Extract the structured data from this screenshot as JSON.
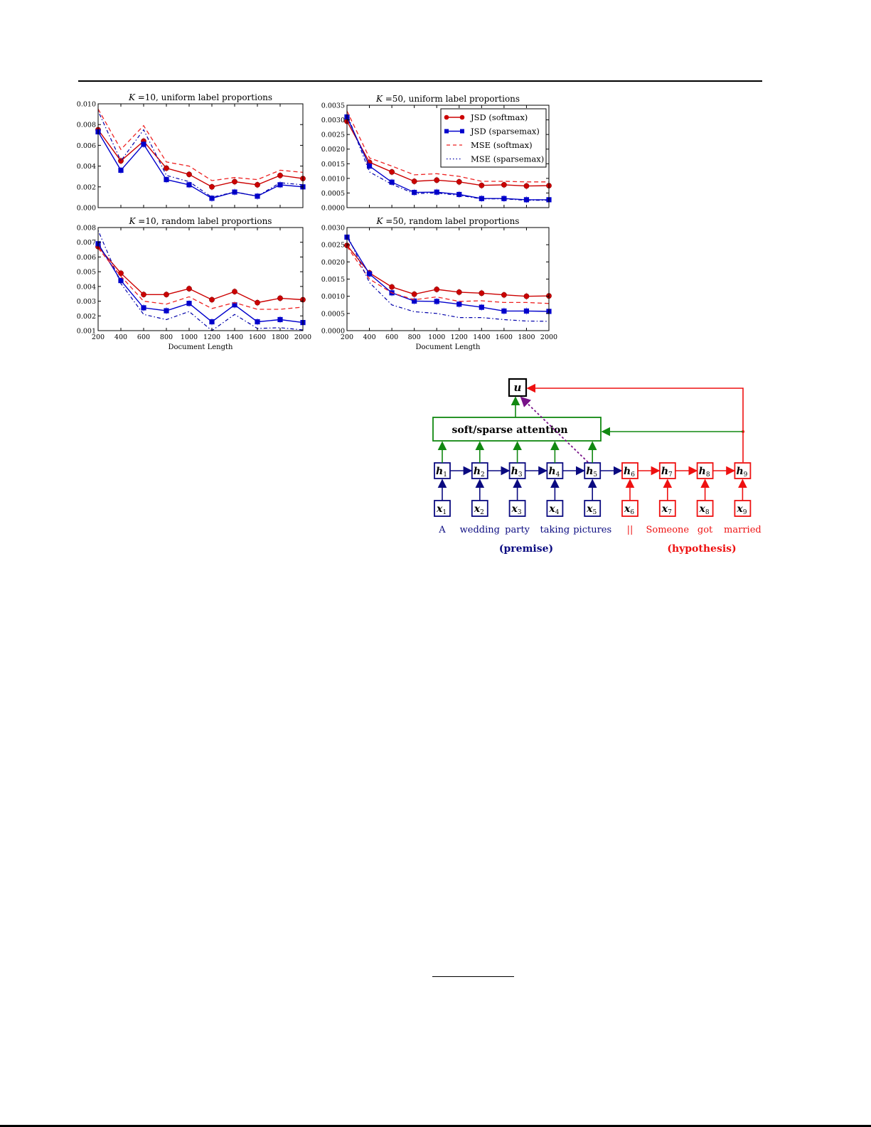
{
  "page": {
    "background": "#ffffff"
  },
  "colors": {
    "softmax_red": "#cc0000",
    "sparsemax_blue": "#0000cc",
    "premise_navy": "#0a0a80",
    "hypothesis_red": "#ee1111",
    "attention_green": "#118811",
    "attention_link_purple": "#771188"
  },
  "legend": {
    "entries": [
      {
        "label": "JSD (softmax)",
        "color": "#cc0000",
        "style": "solid",
        "marker": "circle"
      },
      {
        "label": "JSD (sparsemax)",
        "color": "#0000cc",
        "style": "solid",
        "marker": "square"
      },
      {
        "label": "MSE (softmax)",
        "color": "#ee2222",
        "style": "dashed",
        "marker": "none"
      },
      {
        "label": "MSE (sparsemax)",
        "color": "#0000aa",
        "style": "dashdot",
        "marker": "none"
      }
    ]
  },
  "chart_data": [
    {
      "type": "line",
      "title": "K = 10, uniform label proportions",
      "title_k": "K",
      "title_rest": " =10, uniform label proportions",
      "xlabel": "",
      "ylabel": "",
      "x": [
        200,
        400,
        600,
        800,
        1000,
        1200,
        1400,
        1600,
        1800,
        2000
      ],
      "xticklabels": [],
      "ylim": [
        0.0,
        0.01
      ],
      "yticks": [
        "0.000",
        "0.002",
        "0.004",
        "0.006",
        "0.008",
        "0.010"
      ],
      "grid": false,
      "legend_position": "none",
      "series": [
        {
          "name": "JSD (softmax)",
          "values": [
            0.0075,
            0.0045,
            0.0064,
            0.0038,
            0.0032,
            0.002,
            0.0025,
            0.0022,
            0.0031,
            0.0028
          ]
        },
        {
          "name": "JSD (sparsemax)",
          "values": [
            0.0073,
            0.0036,
            0.0061,
            0.0027,
            0.0022,
            0.0009,
            0.0015,
            0.0011,
            0.0022,
            0.002
          ]
        },
        {
          "name": "MSE (softmax)",
          "values": [
            0.0095,
            0.0056,
            0.0079,
            0.0044,
            0.004,
            0.0026,
            0.0029,
            0.0027,
            0.0036,
            0.0034
          ]
        },
        {
          "name": "MSE (sparsemax)",
          "values": [
            0.0093,
            0.0045,
            0.0075,
            0.0031,
            0.0025,
            0.001,
            0.0015,
            0.0011,
            0.0024,
            0.0022
          ]
        }
      ]
    },
    {
      "type": "line",
      "title": "K = 50, uniform label proportions",
      "title_k": "K",
      "title_rest": " =50, uniform label proportions",
      "xlabel": "",
      "ylabel": "",
      "x": [
        200,
        400,
        600,
        800,
        1000,
        1200,
        1400,
        1600,
        1800,
        2000
      ],
      "xticklabels": [],
      "ylim": [
        0.0,
        0.0035
      ],
      "yticks": [
        "0.0000",
        "0.0005",
        "0.0010",
        "0.0015",
        "0.0020",
        "0.0025",
        "0.0030",
        "0.0035"
      ],
      "grid": false,
      "legend_position": "upper right",
      "series": [
        {
          "name": "JSD (softmax)",
          "values": [
            0.00295,
            0.00155,
            0.00122,
            0.0009,
            0.00094,
            0.00088,
            0.00076,
            0.00078,
            0.00074,
            0.00075
          ]
        },
        {
          "name": "JSD (sparsemax)",
          "values": [
            0.0031,
            0.00142,
            0.00087,
            0.00052,
            0.00053,
            0.00045,
            0.00031,
            0.00031,
            0.00027,
            0.00027
          ]
        },
        {
          "name": "MSE (softmax)",
          "values": [
            0.0033,
            0.0017,
            0.00142,
            0.00112,
            0.00116,
            0.00107,
            0.0009,
            0.0009,
            0.00088,
            0.00088
          ]
        },
        {
          "name": "MSE (sparsemax)",
          "values": [
            0.0032,
            0.00122,
            0.0008,
            0.00048,
            0.0005,
            0.00042,
            0.0003,
            0.0003,
            0.00025,
            0.00025
          ]
        }
      ]
    },
    {
      "type": "line",
      "title": "K = 10, random label proportions",
      "title_k": "K",
      "title_rest": " =10, random label proportions",
      "xlabel": "Document Length",
      "ylabel": "",
      "x": [
        200,
        400,
        600,
        800,
        1000,
        1200,
        1400,
        1600,
        1800,
        2000
      ],
      "xticklabels": [
        "200",
        "400",
        "600",
        "800",
        "1000",
        "1200",
        "1400",
        "1600",
        "1800",
        "2000"
      ],
      "ylim": [
        0.001,
        0.008
      ],
      "yticks": [
        "0.001",
        "0.002",
        "0.003",
        "0.004",
        "0.005",
        "0.006",
        "0.007",
        "0.008"
      ],
      "grid": false,
      "legend_position": "none",
      "series": [
        {
          "name": "JSD (softmax)",
          "values": [
            0.0067,
            0.0049,
            0.00345,
            0.00345,
            0.00385,
            0.0031,
            0.00365,
            0.0029,
            0.0032,
            0.0031
          ]
        },
        {
          "name": "JSD (sparsemax)",
          "values": [
            0.0069,
            0.0044,
            0.00255,
            0.00235,
            0.00285,
            0.0016,
            0.00275,
            0.0016,
            0.00175,
            0.00155
          ]
        },
        {
          "name": "MSE (softmax)",
          "values": [
            0.0066,
            0.0047,
            0.003,
            0.0028,
            0.0033,
            0.0025,
            0.0029,
            0.00245,
            0.00245,
            0.0026
          ]
        },
        {
          "name": "MSE (sparsemax)",
          "values": [
            0.0078,
            0.0042,
            0.0021,
            0.00175,
            0.0023,
            0.001,
            0.0021,
            0.00115,
            0.0012,
            0.00105
          ]
        }
      ]
    },
    {
      "type": "line",
      "title": "K = 50, random label proportions",
      "title_k": "K",
      "title_rest": " =50, random label proportions",
      "xlabel": "Document Length",
      "ylabel": "",
      "x": [
        200,
        400,
        600,
        800,
        1000,
        1200,
        1400,
        1600,
        1800,
        2000
      ],
      "xticklabels": [
        "200",
        "400",
        "600",
        "800",
        "1000",
        "1200",
        "1400",
        "1600",
        "1800",
        "2000"
      ],
      "ylim": [
        0.0,
        0.003
      ],
      "yticks": [
        "0.0000",
        "0.0005",
        "0.0010",
        "0.0015",
        "0.0020",
        "0.0025",
        "0.0030"
      ],
      "grid": false,
      "legend_position": "none",
      "series": [
        {
          "name": "JSD (softmax)",
          "values": [
            0.00248,
            0.00168,
            0.00127,
            0.00106,
            0.0012,
            0.00112,
            0.00109,
            0.00104,
            0.001,
            0.00101
          ]
        },
        {
          "name": "JSD (sparsemax)",
          "values": [
            0.00272,
            0.00165,
            0.0011,
            0.00086,
            0.00085,
            0.00077,
            0.00068,
            0.00057,
            0.00057,
            0.00056
          ]
        },
        {
          "name": "MSE (softmax)",
          "values": [
            0.00245,
            0.0015,
            0.0011,
            0.0009,
            0.00098,
            0.00085,
            0.00087,
            0.00082,
            0.00082,
            0.00079
          ]
        },
        {
          "name": "MSE (sparsemax)",
          "values": [
            0.0028,
            0.0014,
            0.00075,
            0.00055,
            0.0005,
            0.00038,
            0.00038,
            0.00032,
            0.00028,
            0.00027
          ]
        }
      ]
    }
  ],
  "diagram": {
    "output_node": "u",
    "attention_label": "soft/sparse attention",
    "premise_nodes": [
      {
        "h": "h",
        "h_sub": "1",
        "x": "x",
        "x_sub": "1",
        "word": "A"
      },
      {
        "h": "h",
        "h_sub": "2",
        "x": "x",
        "x_sub": "2",
        "word": "wedding"
      },
      {
        "h": "h",
        "h_sub": "3",
        "x": "x",
        "x_sub": "3",
        "word": "party"
      },
      {
        "h": "h",
        "h_sub": "4",
        "x": "x",
        "x_sub": "4",
        "word": "taking"
      },
      {
        "h": "h",
        "h_sub": "5",
        "x": "x",
        "x_sub": "5",
        "word": "pictures"
      }
    ],
    "hypothesis_nodes": [
      {
        "h": "h",
        "h_sub": "6",
        "x": "x",
        "x_sub": "6",
        "word": "||"
      },
      {
        "h": "h",
        "h_sub": "7",
        "x": "x",
        "x_sub": "7",
        "word": "Someone"
      },
      {
        "h": "h",
        "h_sub": "8",
        "x": "x",
        "x_sub": "8",
        "word": "got"
      },
      {
        "h": "h",
        "h_sub": "9",
        "x": "x",
        "x_sub": "9",
        "word": "married"
      }
    ],
    "premise_label": "(premise)",
    "hypothesis_label": "(hypothesis)"
  }
}
